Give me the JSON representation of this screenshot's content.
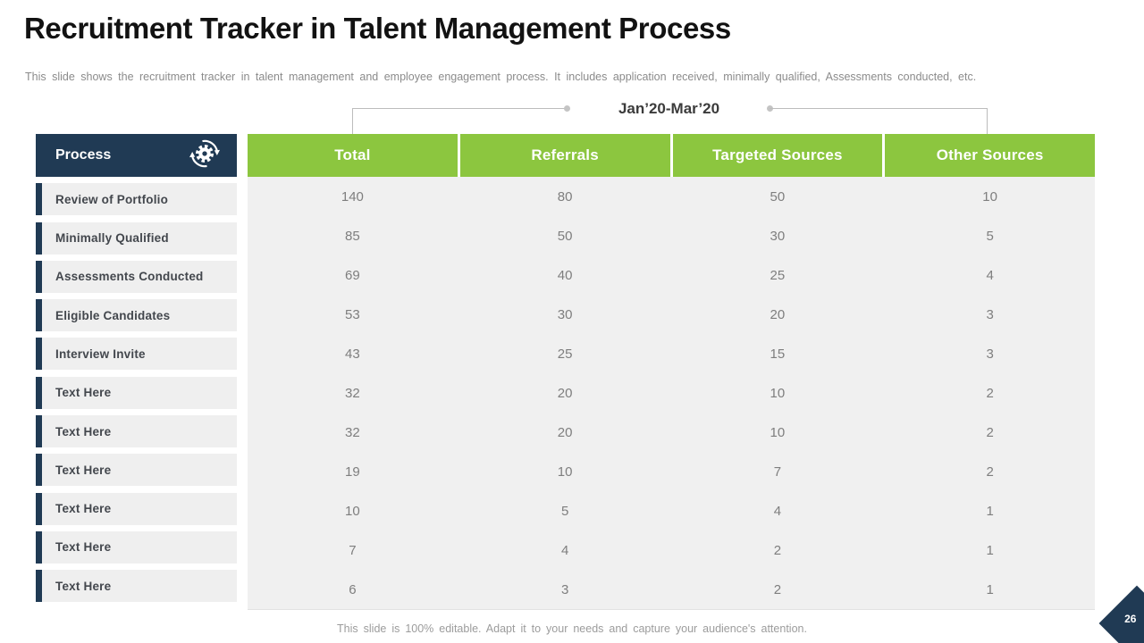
{
  "slide": {
    "title": "Recruitment Tracker in Talent Management Process",
    "subtitle": "This slide shows the recruitment tracker in talent management and employee engagement process. It includes application received, minimally qualified, Assessments conducted, etc.",
    "date_range": "Jan’20-Mar’20",
    "footer": "This slide is 100% editable. Adapt it to your needs and capture your audience's attention.",
    "page_number": "26"
  },
  "colors": {
    "accent_green": "#8cc63f",
    "accent_navy": "#203a54",
    "table_body_gray": "#f0f0f0"
  },
  "sidebar": {
    "header": "Process",
    "icon": "gear-sync-icon",
    "items": [
      "Review of Portfolio",
      "Minimally Qualified",
      "Assessments Conducted",
      "Eligible Candidates",
      "Interview Invite",
      "Text Here",
      "Text Here",
      "Text Here",
      "Text Here",
      "Text Here",
      "Text Here"
    ]
  },
  "table": {
    "columns": [
      "Total",
      "Referrals",
      "Targeted Sources",
      "Other Sources"
    ],
    "rows": [
      [
        140,
        80,
        50,
        10
      ],
      [
        85,
        50,
        30,
        5
      ],
      [
        69,
        40,
        25,
        4
      ],
      [
        53,
        30,
        20,
        3
      ],
      [
        43,
        25,
        15,
        3
      ],
      [
        32,
        20,
        10,
        2
      ],
      [
        32,
        20,
        10,
        2
      ],
      [
        19,
        10,
        7,
        2
      ],
      [
        10,
        5,
        4,
        1
      ],
      [
        7,
        4,
        2,
        1
      ],
      [
        6,
        3,
        2,
        1
      ]
    ]
  }
}
